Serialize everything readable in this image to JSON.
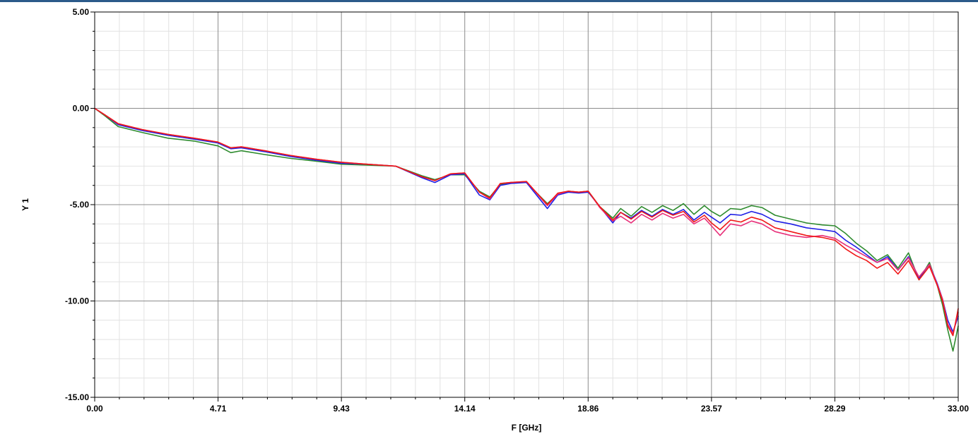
{
  "chart_data": {
    "type": "line",
    "xlabel": "F [GHz]",
    "ylabel": "Y 1",
    "xlim": [
      0,
      33
    ],
    "ylim": [
      -15,
      5
    ],
    "x_tick_labels": [
      "0.00",
      "4.71",
      "9.43",
      "14.14",
      "18.86",
      "23.57",
      "28.29",
      "33.00"
    ],
    "y_tick_labels": [
      "5.00",
      "0.00",
      "-5.00",
      "-10.00",
      "-15.00"
    ],
    "grid": true,
    "series": [
      {
        "color": "#2e8b2e",
        "x": [
          0,
          0.4,
          0.9,
          1.8,
          2.8,
          3.8,
          4.71,
          5.2,
          5.6,
          6.5,
          7.5,
          8.5,
          9.43,
          10.4,
          11.5,
          12.5,
          13.0,
          13.6,
          14.14,
          14.7,
          15.1,
          15.5,
          15.9,
          16.5,
          17.3,
          17.7,
          18.1,
          18.5,
          18.86,
          19.3,
          19.8,
          20.1,
          20.5,
          20.9,
          21.3,
          21.7,
          22.1,
          22.5,
          22.9,
          23.3,
          23.57,
          23.9,
          24.3,
          24.7,
          25.1,
          25.5,
          26.0,
          26.6,
          27.2,
          27.8,
          28.29,
          28.7,
          29.1,
          29.5,
          29.9,
          30.3,
          30.7,
          31.1,
          31.5,
          31.9,
          32.2,
          32.4,
          32.6,
          32.8,
          33.0
        ],
        "values": [
          0,
          -0.4,
          -0.95,
          -1.25,
          -1.55,
          -1.7,
          -1.95,
          -2.3,
          -2.2,
          -2.4,
          -2.6,
          -2.75,
          -2.9,
          -2.95,
          -3.0,
          -3.5,
          -3.7,
          -3.45,
          -3.45,
          -4.3,
          -4.6,
          -3.95,
          -3.85,
          -3.85,
          -4.95,
          -4.45,
          -4.3,
          -4.35,
          -4.3,
          -5.1,
          -5.7,
          -5.2,
          -5.6,
          -5.1,
          -5.4,
          -5.05,
          -5.3,
          -4.95,
          -5.5,
          -5.05,
          -5.35,
          -5.6,
          -5.2,
          -5.25,
          -5.05,
          -5.15,
          -5.55,
          -5.75,
          -5.95,
          -6.05,
          -6.1,
          -6.5,
          -7.0,
          -7.4,
          -7.9,
          -7.6,
          -8.3,
          -7.5,
          -8.9,
          -8.0,
          -9.2,
          -10.2,
          -11.5,
          -12.6,
          -11.3
        ]
      },
      {
        "color": "#1f1fe6",
        "x": [
          0,
          0.4,
          0.9,
          1.8,
          2.8,
          3.8,
          4.71,
          5.2,
          5.6,
          6.5,
          7.5,
          8.5,
          9.43,
          10.4,
          11.5,
          12.5,
          13.0,
          13.6,
          14.14,
          14.7,
          15.1,
          15.5,
          15.9,
          16.5,
          17.3,
          17.7,
          18.1,
          18.5,
          18.86,
          19.3,
          19.8,
          20.1,
          20.5,
          20.9,
          21.3,
          21.7,
          22.1,
          22.5,
          22.9,
          23.3,
          23.57,
          23.9,
          24.3,
          24.7,
          25.1,
          25.5,
          26.0,
          26.6,
          27.2,
          27.8,
          28.29,
          28.7,
          29.1,
          29.5,
          29.9,
          30.3,
          30.7,
          31.1,
          31.5,
          31.9,
          32.2,
          32.4,
          32.6,
          32.8,
          33.0
        ],
        "values": [
          0,
          -0.35,
          -0.85,
          -1.15,
          -1.4,
          -1.6,
          -1.8,
          -2.1,
          -2.05,
          -2.25,
          -2.5,
          -2.7,
          -2.85,
          -2.9,
          -3.0,
          -3.6,
          -3.85,
          -3.45,
          -3.4,
          -4.5,
          -4.75,
          -4.0,
          -3.9,
          -3.85,
          -5.2,
          -4.5,
          -4.35,
          -4.4,
          -4.35,
          -5.1,
          -5.95,
          -5.4,
          -5.7,
          -5.3,
          -5.6,
          -5.25,
          -5.5,
          -5.25,
          -5.8,
          -5.4,
          -5.65,
          -5.95,
          -5.5,
          -5.55,
          -5.35,
          -5.5,
          -5.85,
          -6.0,
          -6.2,
          -6.3,
          -6.4,
          -6.85,
          -7.2,
          -7.6,
          -8.0,
          -7.7,
          -8.4,
          -7.7,
          -8.8,
          -8.1,
          -9.1,
          -9.9,
          -11.0,
          -11.6,
          -10.8
        ]
      },
      {
        "color": "#e8307a",
        "x": [
          0,
          0.4,
          0.9,
          1.8,
          2.8,
          3.8,
          4.71,
          5.2,
          5.6,
          6.5,
          7.5,
          8.5,
          9.43,
          10.4,
          11.5,
          12.5,
          13.0,
          13.6,
          14.14,
          14.7,
          15.1,
          15.5,
          15.9,
          16.5,
          17.3,
          17.7,
          18.1,
          18.5,
          18.86,
          19.3,
          19.8,
          20.1,
          20.5,
          20.9,
          21.3,
          21.7,
          22.1,
          22.5,
          22.9,
          23.3,
          23.57,
          23.9,
          24.3,
          24.7,
          25.1,
          25.5,
          26.0,
          26.6,
          27.2,
          27.8,
          28.29,
          28.7,
          29.1,
          29.5,
          29.9,
          30.3,
          30.7,
          31.1,
          31.5,
          31.9,
          32.2,
          32.4,
          32.6,
          32.8,
          33.0
        ],
        "values": [
          0,
          -0.35,
          -0.8,
          -1.1,
          -1.35,
          -1.55,
          -1.75,
          -2.05,
          -2.0,
          -2.2,
          -2.45,
          -2.65,
          -2.8,
          -2.9,
          -3.0,
          -3.55,
          -3.75,
          -3.4,
          -3.35,
          -4.35,
          -4.7,
          -3.9,
          -3.85,
          -3.8,
          -5.05,
          -4.45,
          -4.3,
          -4.35,
          -4.3,
          -5.15,
          -5.85,
          -5.6,
          -5.95,
          -5.5,
          -5.8,
          -5.45,
          -5.7,
          -5.5,
          -6.0,
          -5.7,
          -6.1,
          -6.6,
          -6.0,
          -6.1,
          -5.85,
          -6.0,
          -6.4,
          -6.6,
          -6.7,
          -6.6,
          -6.75,
          -7.1,
          -7.4,
          -7.7,
          -8.0,
          -7.8,
          -8.4,
          -7.75,
          -8.75,
          -8.1,
          -9.15,
          -9.9,
          -11.2,
          -11.7,
          -10.6
        ]
      },
      {
        "color": "#f01818",
        "x": [
          0,
          0.4,
          0.9,
          1.8,
          2.8,
          3.8,
          4.71,
          5.2,
          5.6,
          6.5,
          7.5,
          8.5,
          9.43,
          10.4,
          11.5,
          12.5,
          13.0,
          13.6,
          14.14,
          14.7,
          15.1,
          15.5,
          15.9,
          16.5,
          17.3,
          17.7,
          18.1,
          18.5,
          18.86,
          19.3,
          19.8,
          20.1,
          20.5,
          20.9,
          21.3,
          21.7,
          22.1,
          22.5,
          22.9,
          23.3,
          23.57,
          23.9,
          24.3,
          24.7,
          25.1,
          25.5,
          26.0,
          26.6,
          27.2,
          27.8,
          28.29,
          28.7,
          29.1,
          29.5,
          29.9,
          30.3,
          30.7,
          31.1,
          31.5,
          31.9,
          32.2,
          32.4,
          32.6,
          32.8,
          33.0
        ],
        "values": [
          0,
          -0.35,
          -0.8,
          -1.1,
          -1.35,
          -1.55,
          -1.75,
          -2.05,
          -2.0,
          -2.2,
          -2.45,
          -2.65,
          -2.8,
          -2.9,
          -3.0,
          -3.55,
          -3.75,
          -3.4,
          -3.35,
          -4.35,
          -4.65,
          -3.9,
          -3.85,
          -3.8,
          -5.0,
          -4.4,
          -4.3,
          -4.35,
          -4.3,
          -5.1,
          -5.8,
          -5.4,
          -5.75,
          -5.35,
          -5.65,
          -5.3,
          -5.55,
          -5.35,
          -5.9,
          -5.55,
          -5.95,
          -6.3,
          -5.8,
          -5.9,
          -5.65,
          -5.8,
          -6.2,
          -6.4,
          -6.6,
          -6.7,
          -6.85,
          -7.3,
          -7.65,
          -7.9,
          -8.3,
          -8.0,
          -8.6,
          -7.9,
          -8.9,
          -8.2,
          -9.2,
          -10.0,
          -11.3,
          -11.8,
          -10.4
        ]
      }
    ]
  }
}
